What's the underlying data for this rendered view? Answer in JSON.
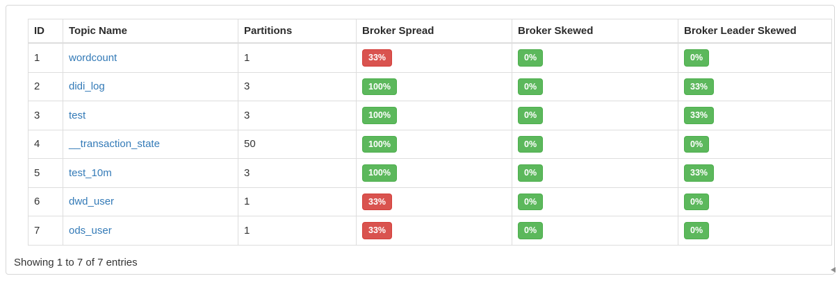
{
  "table": {
    "columns": [
      "ID",
      "Topic Name",
      "Partitions",
      "Broker Spread",
      "Broker Skewed",
      "Broker Leader Skewed"
    ],
    "rows": [
      {
        "id": "1",
        "topic": "wordcount",
        "partitions": "1",
        "broker_spread": {
          "text": "33%",
          "color": "danger"
        },
        "broker_skewed": {
          "text": "0%",
          "color": "success"
        },
        "broker_leader_skewed": {
          "text": "0%",
          "color": "success"
        }
      },
      {
        "id": "2",
        "topic": "didi_log",
        "partitions": "3",
        "broker_spread": {
          "text": "100%",
          "color": "success"
        },
        "broker_skewed": {
          "text": "0%",
          "color": "success"
        },
        "broker_leader_skewed": {
          "text": "33%",
          "color": "success"
        }
      },
      {
        "id": "3",
        "topic": "test",
        "partitions": "3",
        "broker_spread": {
          "text": "100%",
          "color": "success"
        },
        "broker_skewed": {
          "text": "0%",
          "color": "success"
        },
        "broker_leader_skewed": {
          "text": "33%",
          "color": "success"
        }
      },
      {
        "id": "4",
        "topic": "__transaction_state",
        "partitions": "50",
        "broker_spread": {
          "text": "100%",
          "color": "success"
        },
        "broker_skewed": {
          "text": "0%",
          "color": "success"
        },
        "broker_leader_skewed": {
          "text": "0%",
          "color": "success"
        }
      },
      {
        "id": "5",
        "topic": "test_10m",
        "partitions": "3",
        "broker_spread": {
          "text": "100%",
          "color": "success"
        },
        "broker_skewed": {
          "text": "0%",
          "color": "success"
        },
        "broker_leader_skewed": {
          "text": "33%",
          "color": "success"
        }
      },
      {
        "id": "6",
        "topic": "dwd_user",
        "partitions": "1",
        "broker_spread": {
          "text": "33%",
          "color": "danger"
        },
        "broker_skewed": {
          "text": "0%",
          "color": "success"
        },
        "broker_leader_skewed": {
          "text": "0%",
          "color": "success"
        }
      },
      {
        "id": "7",
        "topic": "ods_user",
        "partitions": "1",
        "broker_spread": {
          "text": "33%",
          "color": "danger"
        },
        "broker_skewed": {
          "text": "0%",
          "color": "success"
        },
        "broker_leader_skewed": {
          "text": "0%",
          "color": "success"
        }
      }
    ]
  },
  "footer": {
    "info": "Showing 1 to 7 of 7 entries"
  },
  "colors": {
    "danger": "#d9534f",
    "success": "#5cb85c",
    "link": "#337ab7",
    "table_border": "#dddddd",
    "text": "#333333"
  }
}
